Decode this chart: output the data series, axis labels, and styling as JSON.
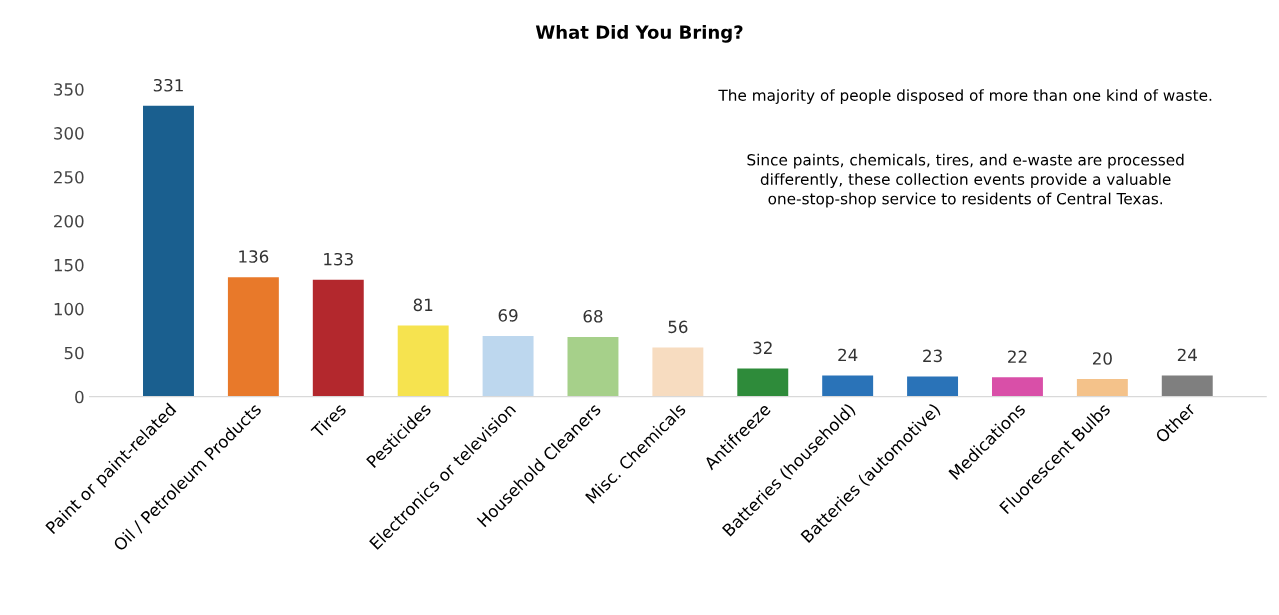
{
  "chart_data": {
    "type": "bar",
    "title": "What Did You Bring?",
    "categories": [
      "Paint or paint-related",
      "Oil / Petroleum Products",
      "Tires",
      "Pesticides",
      "Electronics or television",
      "Household Cleaners",
      "Misc. Chemicals",
      "Antifreeze",
      "Batteries (household)",
      "Batteries (automotive)",
      "Medications",
      "Fluorescent Bulbs",
      "Other"
    ],
    "values": [
      331,
      136,
      133,
      81,
      69,
      68,
      56,
      32,
      24,
      23,
      22,
      20,
      24
    ],
    "colors": [
      "#1a5f8f",
      "#e8792a",
      "#b3282d",
      "#f6e34f",
      "#bdd7ee",
      "#a6d08a",
      "#f7dcc0",
      "#2e8b3a",
      "#2a73b8",
      "#2a73b8",
      "#d94fa8",
      "#f4c28a",
      "#7f7f7f"
    ],
    "ylim": [
      0,
      350
    ],
    "yticks": [
      0,
      50,
      100,
      150,
      200,
      250,
      300,
      350
    ],
    "data_labels": true,
    "grid": false,
    "legend": false,
    "annotations": [
      "The majority of people disposed of more than one kind of waste.",
      "Since paints, chemicals, tires, and e-waste are processed\ndifferently, these collection events provide a valuable\none-stop-shop service to residents of Central Texas."
    ]
  }
}
